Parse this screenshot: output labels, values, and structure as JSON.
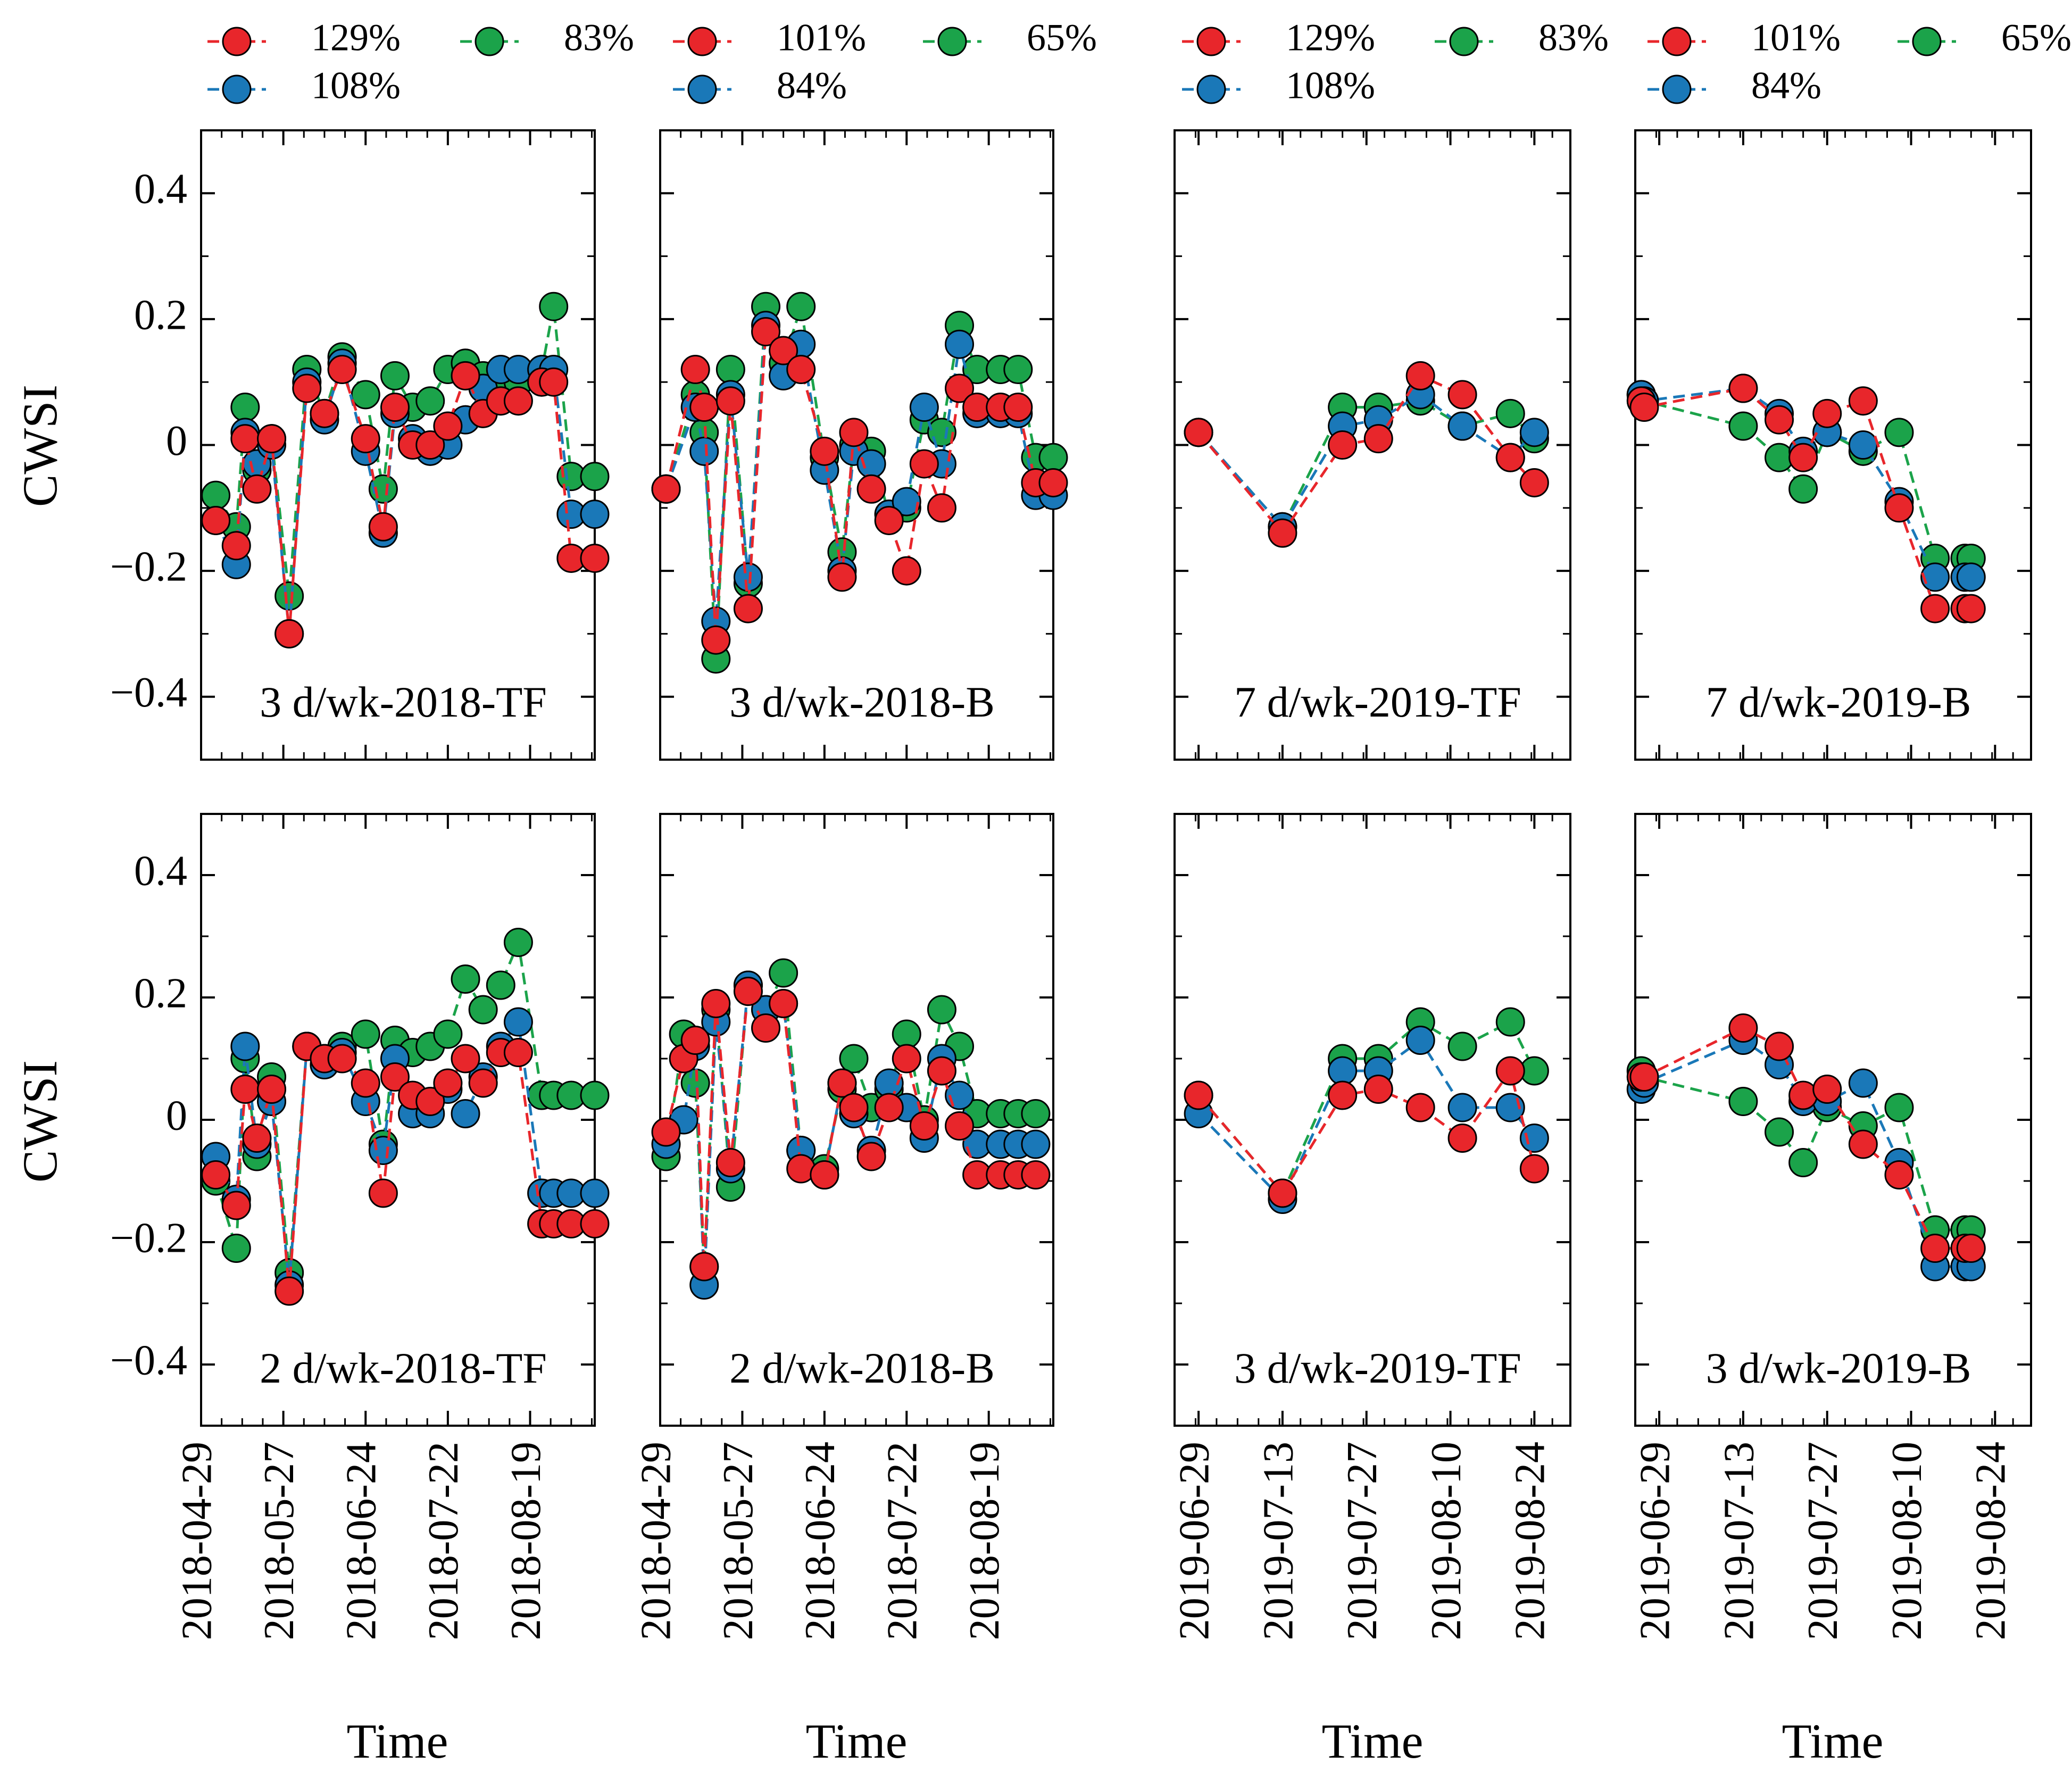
{
  "chart_data": {
    "type": "line",
    "ylabel": "CWSI",
    "xlabel": "Time",
    "ylim": [
      -0.5,
      0.5
    ],
    "yticks": [
      "0.4",
      "0.2",
      "0",
      "−0.2",
      "−0.4"
    ],
    "ytick_values": [
      0.4,
      0.2,
      0,
      -0.2,
      -0.4
    ],
    "colors": {
      "red": "#e8262b",
      "green": "#1ba34a",
      "blue": "#1a78b8"
    },
    "legends": [
      {
        "entries": [
          {
            "label": "129%",
            "color": "#e8262b"
          },
          {
            "label": "83%",
            "color": "#1ba34a"
          },
          {
            "label": "101%",
            "color": "#e8262b"
          },
          {
            "label": "65%",
            "color": "#1ba34a"
          },
          {
            "label": "108%",
            "color": "#1a78b8"
          },
          {
            "label": "84%",
            "color": "#1a78b8"
          }
        ]
      },
      {
        "entries": [
          {
            "label": "129%",
            "color": "#e8262b"
          },
          {
            "label": "83%",
            "color": "#1ba34a"
          },
          {
            "label": "101%",
            "color": "#e8262b"
          },
          {
            "label": "65%",
            "color": "#1ba34a"
          },
          {
            "label": "108%",
            "color": "#1a78b8"
          },
          {
            "label": "84%",
            "color": "#1a78b8"
          }
        ]
      }
    ],
    "year_axes": {
      "2018": {
        "xmin": 0,
        "xmax": 134,
        "ticks": [
          {
            "label": "2018-04-29",
            "x": 0
          },
          {
            "label": "2018-05-27",
            "x": 28
          },
          {
            "label": "2018-06-24",
            "x": 56
          },
          {
            "label": "2018-07-22",
            "x": 84
          },
          {
            "label": "2018-08-19",
            "x": 112
          }
        ]
      },
      "2019": {
        "xmin": 0,
        "xmax": 66,
        "ticks": [
          {
            "label": "2019-06-29",
            "x": 4
          },
          {
            "label": "2019-07-13",
            "x": 18
          },
          {
            "label": "2019-07-27",
            "x": 32
          },
          {
            "label": "2019-08-10",
            "x": 46
          },
          {
            "label": "2019-08-24",
            "x": 60
          }
        ]
      }
    },
    "panels": [
      {
        "label": "3 d/wk-2018-TF",
        "year": "2018",
        "x": [
          5,
          12,
          15,
          19,
          24,
          30,
          36,
          42,
          48,
          56,
          62,
          66,
          72,
          78,
          84,
          90,
          96,
          102,
          108,
          116,
          120,
          126,
          134
        ],
        "series": [
          {
            "color": "green",
            "values": [
              -0.08,
              -0.13,
              0.06,
              -0.04,
              0.01,
              -0.24,
              0.12,
              0.05,
              0.14,
              0.08,
              -0.07,
              0.11,
              0.06,
              0.07,
              0.12,
              0.13,
              0.11,
              0.1,
              0.1,
              0.12,
              0.22,
              -0.05,
              -0.05
            ]
          },
          {
            "color": "blue",
            "values": [
              -0.12,
              -0.19,
              0.02,
              -0.03,
              0.0,
              -0.3,
              0.1,
              0.04,
              0.13,
              -0.01,
              -0.14,
              0.05,
              0.01,
              -0.01,
              0.0,
              0.04,
              0.09,
              0.12,
              0.12,
              0.12,
              0.12,
              -0.11,
              -0.11
            ]
          },
          {
            "color": "red",
            "values": [
              -0.12,
              -0.16,
              0.01,
              -0.07,
              0.01,
              -0.3,
              0.09,
              0.05,
              0.12,
              0.01,
              -0.13,
              0.06,
              0.0,
              0.0,
              0.03,
              0.11,
              0.05,
              0.07,
              0.07,
              0.1,
              0.1,
              -0.18,
              -0.18
            ]
          }
        ]
      },
      {
        "label": "3 d/wk-2018-B",
        "year": "2018",
        "x": [
          2,
          12,
          15,
          19,
          24,
          30,
          36,
          42,
          48,
          56,
          62,
          66,
          72,
          78,
          84,
          90,
          96,
          102,
          108,
          116,
          122,
          128,
          134
        ],
        "series": [
          {
            "color": "green",
            "values": [
              -0.07,
              0.08,
              0.02,
              -0.34,
              0.12,
              -0.22,
              0.22,
              0.13,
              0.22,
              -0.02,
              -0.17,
              0.0,
              -0.01,
              -0.11,
              -0.1,
              0.04,
              0.02,
              0.19,
              0.12,
              0.12,
              0.12,
              -0.02,
              -0.02
            ]
          },
          {
            "color": "blue",
            "values": [
              -0.07,
              0.06,
              -0.01,
              -0.28,
              0.08,
              -0.21,
              0.19,
              0.11,
              0.16,
              -0.04,
              -0.2,
              -0.01,
              -0.03,
              -0.11,
              -0.09,
              0.06,
              -0.03,
              0.16,
              0.05,
              0.05,
              0.05,
              -0.08,
              -0.08
            ]
          },
          {
            "color": "red",
            "values": [
              -0.07,
              0.12,
              0.06,
              -0.31,
              0.07,
              -0.26,
              0.18,
              0.15,
              0.12,
              -0.01,
              -0.21,
              0.02,
              -0.07,
              -0.12,
              -0.2,
              -0.03,
              -0.1,
              0.09,
              0.06,
              0.06,
              0.06,
              -0.06,
              -0.06
            ]
          }
        ]
      },
      {
        "label": "7 d/wk-2019-TF",
        "year": "2019",
        "x": [
          4,
          18,
          28,
          34,
          41,
          48,
          56,
          60
        ],
        "series": [
          {
            "color": "green",
            "values": [
              0.02,
              -0.13,
              0.06,
              0.06,
              0.07,
              0.03,
              0.05,
              0.01
            ]
          },
          {
            "color": "blue",
            "values": [
              0.02,
              -0.13,
              0.03,
              0.04,
              0.08,
              0.03,
              -0.02,
              0.02
            ]
          },
          {
            "color": "red",
            "values": [
              0.02,
              -0.14,
              0.0,
              0.01,
              0.11,
              0.08,
              -0.02,
              -0.06
            ]
          }
        ]
      },
      {
        "label": "7 d/wk-2019-B",
        "year": "2019",
        "x": [
          1,
          1.5,
          18,
          24,
          28,
          32,
          38,
          44,
          50,
          55,
          56
        ],
        "series": [
          {
            "color": "green",
            "values": [
              0.08,
              0.07,
              0.03,
              -0.02,
              -0.07,
              0.02,
              -0.01,
              0.02,
              -0.18,
              -0.18,
              -0.18
            ]
          },
          {
            "color": "blue",
            "values": [
              0.08,
              0.07,
              0.09,
              0.05,
              -0.01,
              0.02,
              0.0,
              -0.09,
              -0.21,
              -0.21,
              -0.21
            ]
          },
          {
            "color": "red",
            "values": [
              0.07,
              0.06,
              0.09,
              0.04,
              -0.02,
              0.05,
              0.07,
              -0.1,
              -0.26,
              -0.26,
              -0.26
            ]
          }
        ]
      },
      {
        "label": "2 d/wk-2018-TF",
        "year": "2018",
        "x": [
          5,
          12,
          15,
          19,
          24,
          30,
          36,
          42,
          48,
          56,
          62,
          66,
          72,
          78,
          84,
          90,
          96,
          102,
          108,
          116,
          120,
          126,
          134
        ],
        "series": [
          {
            "color": "green",
            "values": [
              -0.1,
              -0.21,
              0.1,
              -0.06,
              0.07,
              -0.25,
              0.12,
              0.1,
              0.12,
              0.14,
              -0.04,
              0.13,
              0.11,
              0.12,
              0.14,
              0.23,
              0.18,
              0.22,
              0.29,
              0.04,
              0.04,
              0.04,
              0.04
            ]
          },
          {
            "color": "blue",
            "values": [
              -0.06,
              -0.13,
              0.12,
              -0.04,
              0.03,
              -0.27,
              0.12,
              0.09,
              0.11,
              0.03,
              -0.05,
              0.1,
              0.01,
              0.01,
              0.05,
              0.01,
              0.07,
              0.12,
              0.16,
              -0.12,
              -0.12,
              -0.12,
              -0.12
            ]
          },
          {
            "color": "red",
            "values": [
              -0.09,
              -0.14,
              0.05,
              -0.03,
              0.05,
              -0.28,
              0.12,
              0.1,
              0.1,
              0.06,
              -0.12,
              0.07,
              0.04,
              0.03,
              0.06,
              0.1,
              0.06,
              0.11,
              0.11,
              -0.17,
              -0.17,
              -0.17,
              -0.17
            ]
          }
        ]
      },
      {
        "label": "2 d/wk-2018-B",
        "year": "2018",
        "x": [
          2,
          8,
          12,
          15,
          19,
          24,
          30,
          36,
          42,
          48,
          56,
          62,
          66,
          72,
          78,
          84,
          90,
          96,
          102,
          108,
          116,
          122,
          128
        ],
        "series": [
          {
            "color": "green",
            "values": [
              -0.06,
              0.14,
              0.06,
              -0.24,
              0.18,
              -0.11,
              0.22,
              0.18,
              0.24,
              -0.05,
              -0.08,
              0.05,
              0.1,
              0.02,
              0.05,
              0.14,
              0.0,
              0.18,
              0.12,
              0.01,
              0.01,
              0.01,
              0.01
            ]
          },
          {
            "color": "blue",
            "values": [
              -0.04,
              0.0,
              0.12,
              -0.27,
              0.16,
              -0.08,
              0.22,
              0.18,
              0.19,
              -0.05,
              -0.09,
              0.06,
              0.01,
              -0.05,
              0.06,
              0.02,
              -0.03,
              0.1,
              0.04,
              -0.04,
              -0.04,
              -0.04,
              -0.04
            ]
          },
          {
            "color": "red",
            "values": [
              -0.02,
              0.1,
              0.13,
              -0.24,
              0.19,
              -0.07,
              0.21,
              0.15,
              0.19,
              -0.08,
              -0.09,
              0.06,
              0.02,
              -0.06,
              0.02,
              0.1,
              -0.01,
              0.08,
              -0.01,
              -0.09,
              -0.09,
              -0.09,
              -0.09
            ]
          }
        ]
      },
      {
        "label": "3 d/wk-2019-TF",
        "year": "2019",
        "x": [
          4,
          18,
          28,
          34,
          41,
          48,
          56,
          60
        ],
        "series": [
          {
            "color": "green",
            "values": [
              0.04,
              -0.12,
              0.1,
              0.1,
              0.16,
              0.12,
              0.16,
              0.08
            ]
          },
          {
            "color": "blue",
            "values": [
              0.01,
              -0.13,
              0.08,
              0.08,
              0.13,
              0.02,
              0.02,
              -0.03
            ]
          },
          {
            "color": "red",
            "values": [
              0.04,
              -0.12,
              0.04,
              0.05,
              0.02,
              -0.03,
              0.08,
              -0.08
            ]
          }
        ]
      },
      {
        "label": "3 d/wk-2019-B",
        "year": "2019",
        "x": [
          1,
          1.5,
          18,
          24,
          28,
          32,
          38,
          44,
          50,
          55,
          56
        ],
        "series": [
          {
            "color": "green",
            "values": [
              0.08,
              0.07,
              0.03,
              -0.02,
              -0.07,
              0.02,
              -0.01,
              0.02,
              -0.18,
              -0.18,
              -0.18
            ]
          },
          {
            "color": "blue",
            "values": [
              0.05,
              0.06,
              0.13,
              0.09,
              0.03,
              0.03,
              0.06,
              -0.07,
              -0.24,
              -0.24,
              -0.24
            ]
          },
          {
            "color": "red",
            "values": [
              0.07,
              0.07,
              0.15,
              0.12,
              0.04,
              0.05,
              -0.04,
              -0.09,
              -0.21,
              -0.21,
              -0.21
            ]
          }
        ]
      }
    ]
  }
}
